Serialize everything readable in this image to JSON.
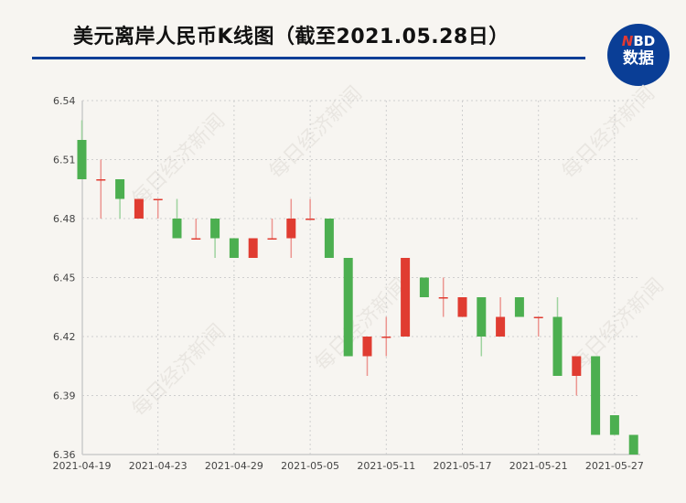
{
  "header": {
    "title": "美元离岸人民币K线图（截至2021.05.28日）",
    "logo_top": "NBD",
    "logo_bottom": "数据"
  },
  "watermark": "每日经济新闻",
  "chart_data": {
    "type": "candlestick",
    "title": "美元离岸人民币K线图（截至2021.05.28日）",
    "ylim": [
      6.36,
      6.54
    ],
    "yticks": [
      "6.54",
      "6.51",
      "6.48",
      "6.45",
      "6.42",
      "6.39",
      "6.36"
    ],
    "xtick_labels": [
      "2021-04-19",
      "2021-04-23",
      "2021-04-29",
      "2021-05-05",
      "2021-05-11",
      "2021-05-17",
      "2021-05-21",
      "2021-05-27"
    ],
    "grid": true,
    "colors": {
      "up": "#e03c31",
      "down": "#4caf50"
    },
    "dates": [
      "2021-04-19",
      "2021-04-20",
      "2021-04-21",
      "2021-04-22",
      "2021-04-23",
      "2021-04-26",
      "2021-04-27",
      "2021-04-28",
      "2021-04-29",
      "2021-04-30",
      "2021-05-03",
      "2021-05-04",
      "2021-05-05",
      "2021-05-06",
      "2021-05-07",
      "2021-05-10",
      "2021-05-11",
      "2021-05-12",
      "2021-05-13",
      "2021-05-14",
      "2021-05-17",
      "2021-05-18",
      "2021-05-19",
      "2021-05-20",
      "2021-05-21",
      "2021-05-24",
      "2021-05-25",
      "2021-05-26",
      "2021-05-27",
      "2021-05-28"
    ],
    "ohlc": [
      [
        6.52,
        6.53,
        6.5,
        6.5
      ],
      [
        6.5,
        6.51,
        6.48,
        6.5
      ],
      [
        6.5,
        6.5,
        6.48,
        6.49
      ],
      [
        6.48,
        6.49,
        6.48,
        6.49
      ],
      [
        6.49,
        6.49,
        6.48,
        6.49
      ],
      [
        6.48,
        6.49,
        6.47,
        6.47
      ],
      [
        6.47,
        6.48,
        6.47,
        6.47
      ],
      [
        6.48,
        6.48,
        6.46,
        6.47
      ],
      [
        6.47,
        6.47,
        6.46,
        6.46
      ],
      [
        6.46,
        6.47,
        6.46,
        6.47
      ],
      [
        6.47,
        6.48,
        6.47,
        6.47
      ],
      [
        6.47,
        6.49,
        6.46,
        6.48
      ],
      [
        6.48,
        6.49,
        6.48,
        6.48
      ],
      [
        6.48,
        6.48,
        6.46,
        6.46
      ],
      [
        6.46,
        6.46,
        6.41,
        6.41
      ],
      [
        6.41,
        6.42,
        6.4,
        6.42
      ],
      [
        6.42,
        6.43,
        6.41,
        6.42
      ],
      [
        6.42,
        6.46,
        6.42,
        6.46
      ],
      [
        6.45,
        6.45,
        6.44,
        6.44
      ],
      [
        6.44,
        6.45,
        6.43,
        6.44
      ],
      [
        6.43,
        6.44,
        6.43,
        6.44
      ],
      [
        6.44,
        6.44,
        6.41,
        6.42
      ],
      [
        6.42,
        6.44,
        6.42,
        6.43
      ],
      [
        6.44,
        6.44,
        6.43,
        6.43
      ],
      [
        6.43,
        6.43,
        6.42,
        6.43
      ],
      [
        6.43,
        6.44,
        6.4,
        6.4
      ],
      [
        6.4,
        6.41,
        6.39,
        6.41
      ],
      [
        6.41,
        6.41,
        6.37,
        6.37
      ],
      [
        6.38,
        6.38,
        6.37,
        6.37
      ],
      [
        6.37,
        6.37,
        6.36,
        6.36
      ]
    ]
  }
}
